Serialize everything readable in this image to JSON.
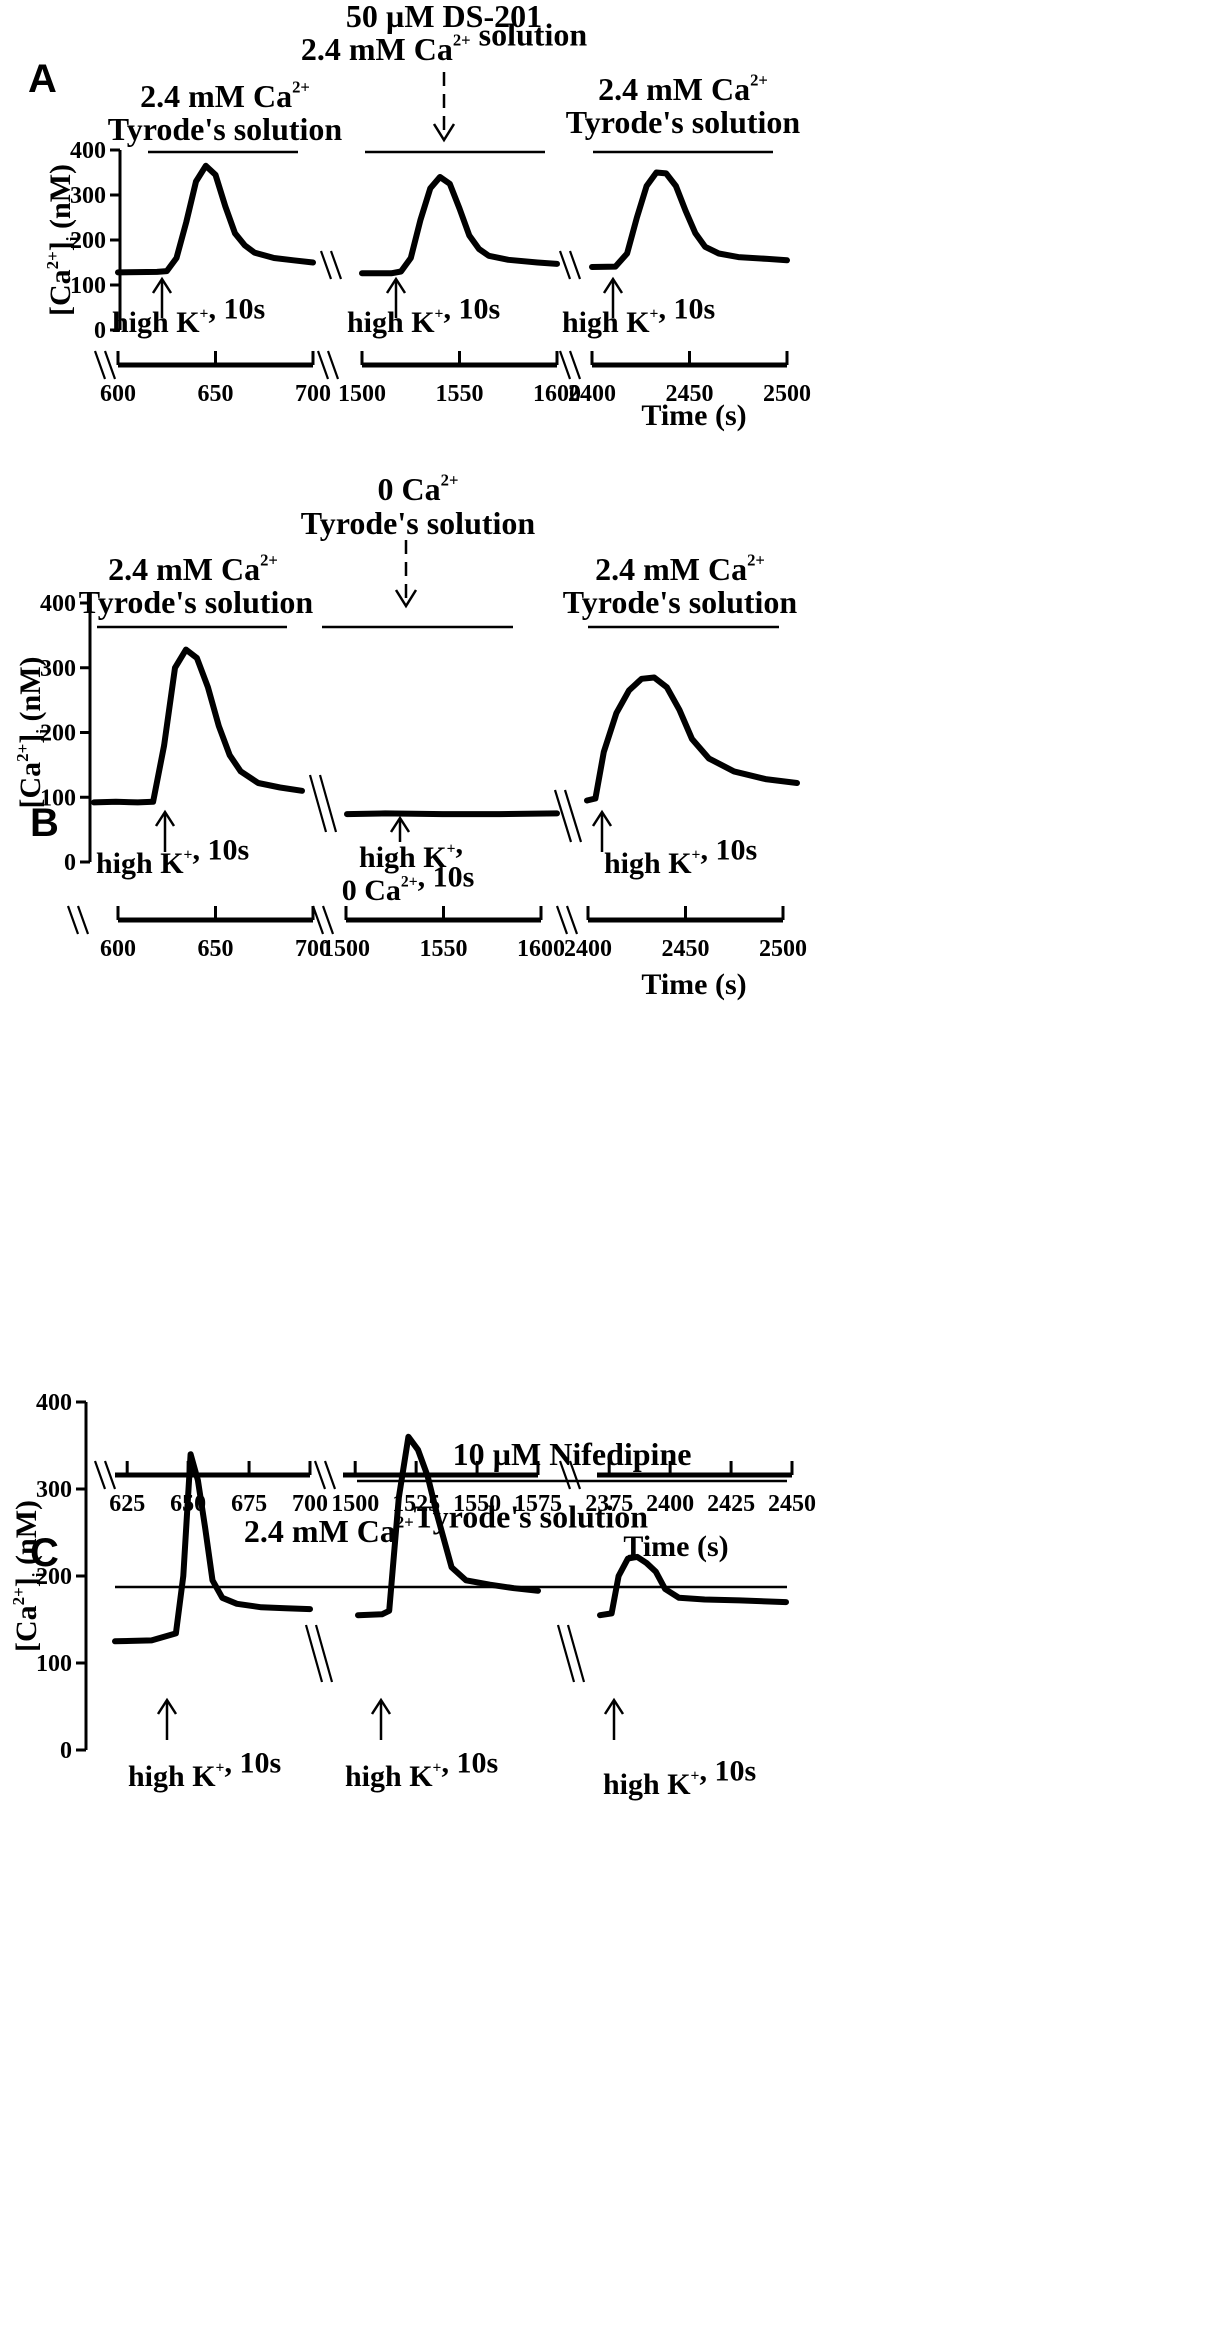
{
  "chart_data": [
    {
      "type": "line",
      "panel": "A",
      "ylabel": "[Ca2+]i (nM)",
      "xlabel": "Time (s)",
      "ylim": [
        0,
        400
      ],
      "yticks": [
        "0",
        "100",
        "200",
        "300",
        "400"
      ],
      "segments": [
        {
          "solution": [
            "2.4 mM Ca2+",
            "Tyrode's solution"
          ],
          "stimulus": "high K+, 10s",
          "xlim": [
            600,
            700
          ],
          "xticks": [
            "600",
            "650",
            "700"
          ],
          "x": [
            600,
            620,
            625,
            630,
            635,
            640,
            645,
            650,
            655,
            660,
            665,
            670,
            680,
            690,
            700
          ],
          "values": [
            128,
            129,
            131,
            160,
            240,
            330,
            365,
            345,
            275,
            215,
            188,
            172,
            160,
            155,
            150
          ]
        },
        {
          "solution": [
            "50 µM DS-201",
            "2.4 mM Ca2+ solution"
          ],
          "stimulus": "high K+, 10s",
          "xlim": [
            1500,
            1600
          ],
          "xticks": [
            "1500",
            "1550",
            "1600"
          ],
          "x": [
            1500,
            1515,
            1520,
            1525,
            1530,
            1535,
            1540,
            1545,
            1550,
            1555,
            1560,
            1565,
            1575,
            1590,
            1600
          ],
          "values": [
            126,
            126,
            130,
            160,
            245,
            315,
            340,
            325,
            270,
            210,
            180,
            165,
            156,
            150,
            147
          ]
        },
        {
          "solution": [
            "2.4 mM Ca2+",
            "Tyrode's solution"
          ],
          "stimulus": "high K+, 10s",
          "xlim": [
            2400,
            2500
          ],
          "xticks": [
            "2400",
            "2450",
            "2500"
          ],
          "x": [
            2400,
            2412,
            2418,
            2423,
            2428,
            2433,
            2438,
            2443,
            2448,
            2453,
            2458,
            2465,
            2475,
            2490,
            2500
          ],
          "values": [
            140,
            141,
            170,
            250,
            320,
            350,
            348,
            320,
            265,
            215,
            185,
            170,
            162,
            158,
            155
          ]
        }
      ]
    },
    {
      "type": "line",
      "panel": "B",
      "ylabel": "[Ca2+]i (nM)",
      "xlabel": "Time (s)",
      "ylim": [
        0,
        400
      ],
      "yticks": [
        "0",
        "100",
        "200",
        "300",
        "400"
      ],
      "segments": [
        {
          "solution": [
            "2.4 mM Ca2+",
            "Tyrode's solution"
          ],
          "stimulus": "high K+, 10s",
          "xlim": [
            600,
            700
          ],
          "xticks": [
            "600",
            "650",
            "700"
          ],
          "x": [
            600,
            610,
            620,
            627,
            632,
            637,
            642,
            647,
            652,
            657,
            662,
            667,
            675,
            685,
            695
          ],
          "values": [
            92,
            93,
            92,
            93,
            180,
            300,
            328,
            315,
            270,
            210,
            165,
            140,
            122,
            115,
            110
          ]
        },
        {
          "solution": [
            "0 Ca2+",
            "Tyrode's solution"
          ],
          "stimulus": "high K+, 0 Ca2+, 10s",
          "xlim": [
            1500,
            1600
          ],
          "xticks": [
            "1500",
            "1550",
            "1600"
          ],
          "x": [
            1500,
            1520,
            1550,
            1580,
            1610
          ],
          "values": [
            74,
            75,
            74,
            74,
            75
          ]
        },
        {
          "solution": [
            "2.4 mM Ca2+",
            "Tyrode's solution"
          ],
          "stimulus": "high K+, 10s",
          "xlim": [
            2400,
            2500
          ],
          "xticks": [
            "2400",
            "2450",
            "2500"
          ],
          "x": [
            2400,
            2404,
            2408,
            2414,
            2420,
            2426,
            2432,
            2438,
            2444,
            2450,
            2458,
            2470,
            2485,
            2500
          ],
          "values": [
            95,
            98,
            170,
            230,
            265,
            283,
            285,
            270,
            235,
            190,
            160,
            140,
            128,
            122
          ]
        }
      ]
    },
    {
      "type": "line",
      "panel": "C",
      "ylabel": "[Ca2+]i (nM)",
      "xlabel": "Time (s)",
      "ylim": [
        0,
        400
      ],
      "yticks": [
        "0",
        "100",
        "200",
        "300",
        "400"
      ],
      "top_solution": "2.4 mM Ca2+Tyrode's solution",
      "drug": "10 µM Nifedipine",
      "segments": [
        {
          "stimulus": "high K+, 10s",
          "xlim": [
            620,
            700
          ],
          "xticks": [
            "625",
            "650",
            "675",
            "700"
          ],
          "x": [
            620,
            635,
            645,
            648,
            651,
            654,
            657,
            660,
            664,
            670,
            680,
            690,
            700
          ],
          "values": [
            125,
            126,
            134,
            200,
            340,
            310,
            255,
            195,
            175,
            168,
            164,
            163,
            162
          ]
        },
        {
          "stimulus": "high K+, 10s",
          "xlim": [
            1495,
            1575
          ],
          "xticks": [
            "1500",
            "1525",
            "1550",
            "1575"
          ],
          "x": [
            1495,
            1505,
            1508,
            1512,
            1516,
            1520,
            1524,
            1528,
            1534,
            1540,
            1550,
            1560,
            1570
          ],
          "values": [
            155,
            156,
            160,
            290,
            360,
            345,
            315,
            270,
            210,
            195,
            190,
            186,
            183
          ]
        },
        {
          "stimulus": "high K+, 10s",
          "xlim": [
            2370,
            2450
          ],
          "xticks": [
            "2375",
            "2400",
            "2425",
            "2450"
          ],
          "x": [
            2370,
            2375,
            2378,
            2382,
            2386,
            2390,
            2394,
            2398,
            2404,
            2415,
            2430,
            2450
          ],
          "values": [
            155,
            157,
            200,
            220,
            222,
            215,
            205,
            185,
            175,
            173,
            172,
            170
          ]
        }
      ]
    }
  ]
}
